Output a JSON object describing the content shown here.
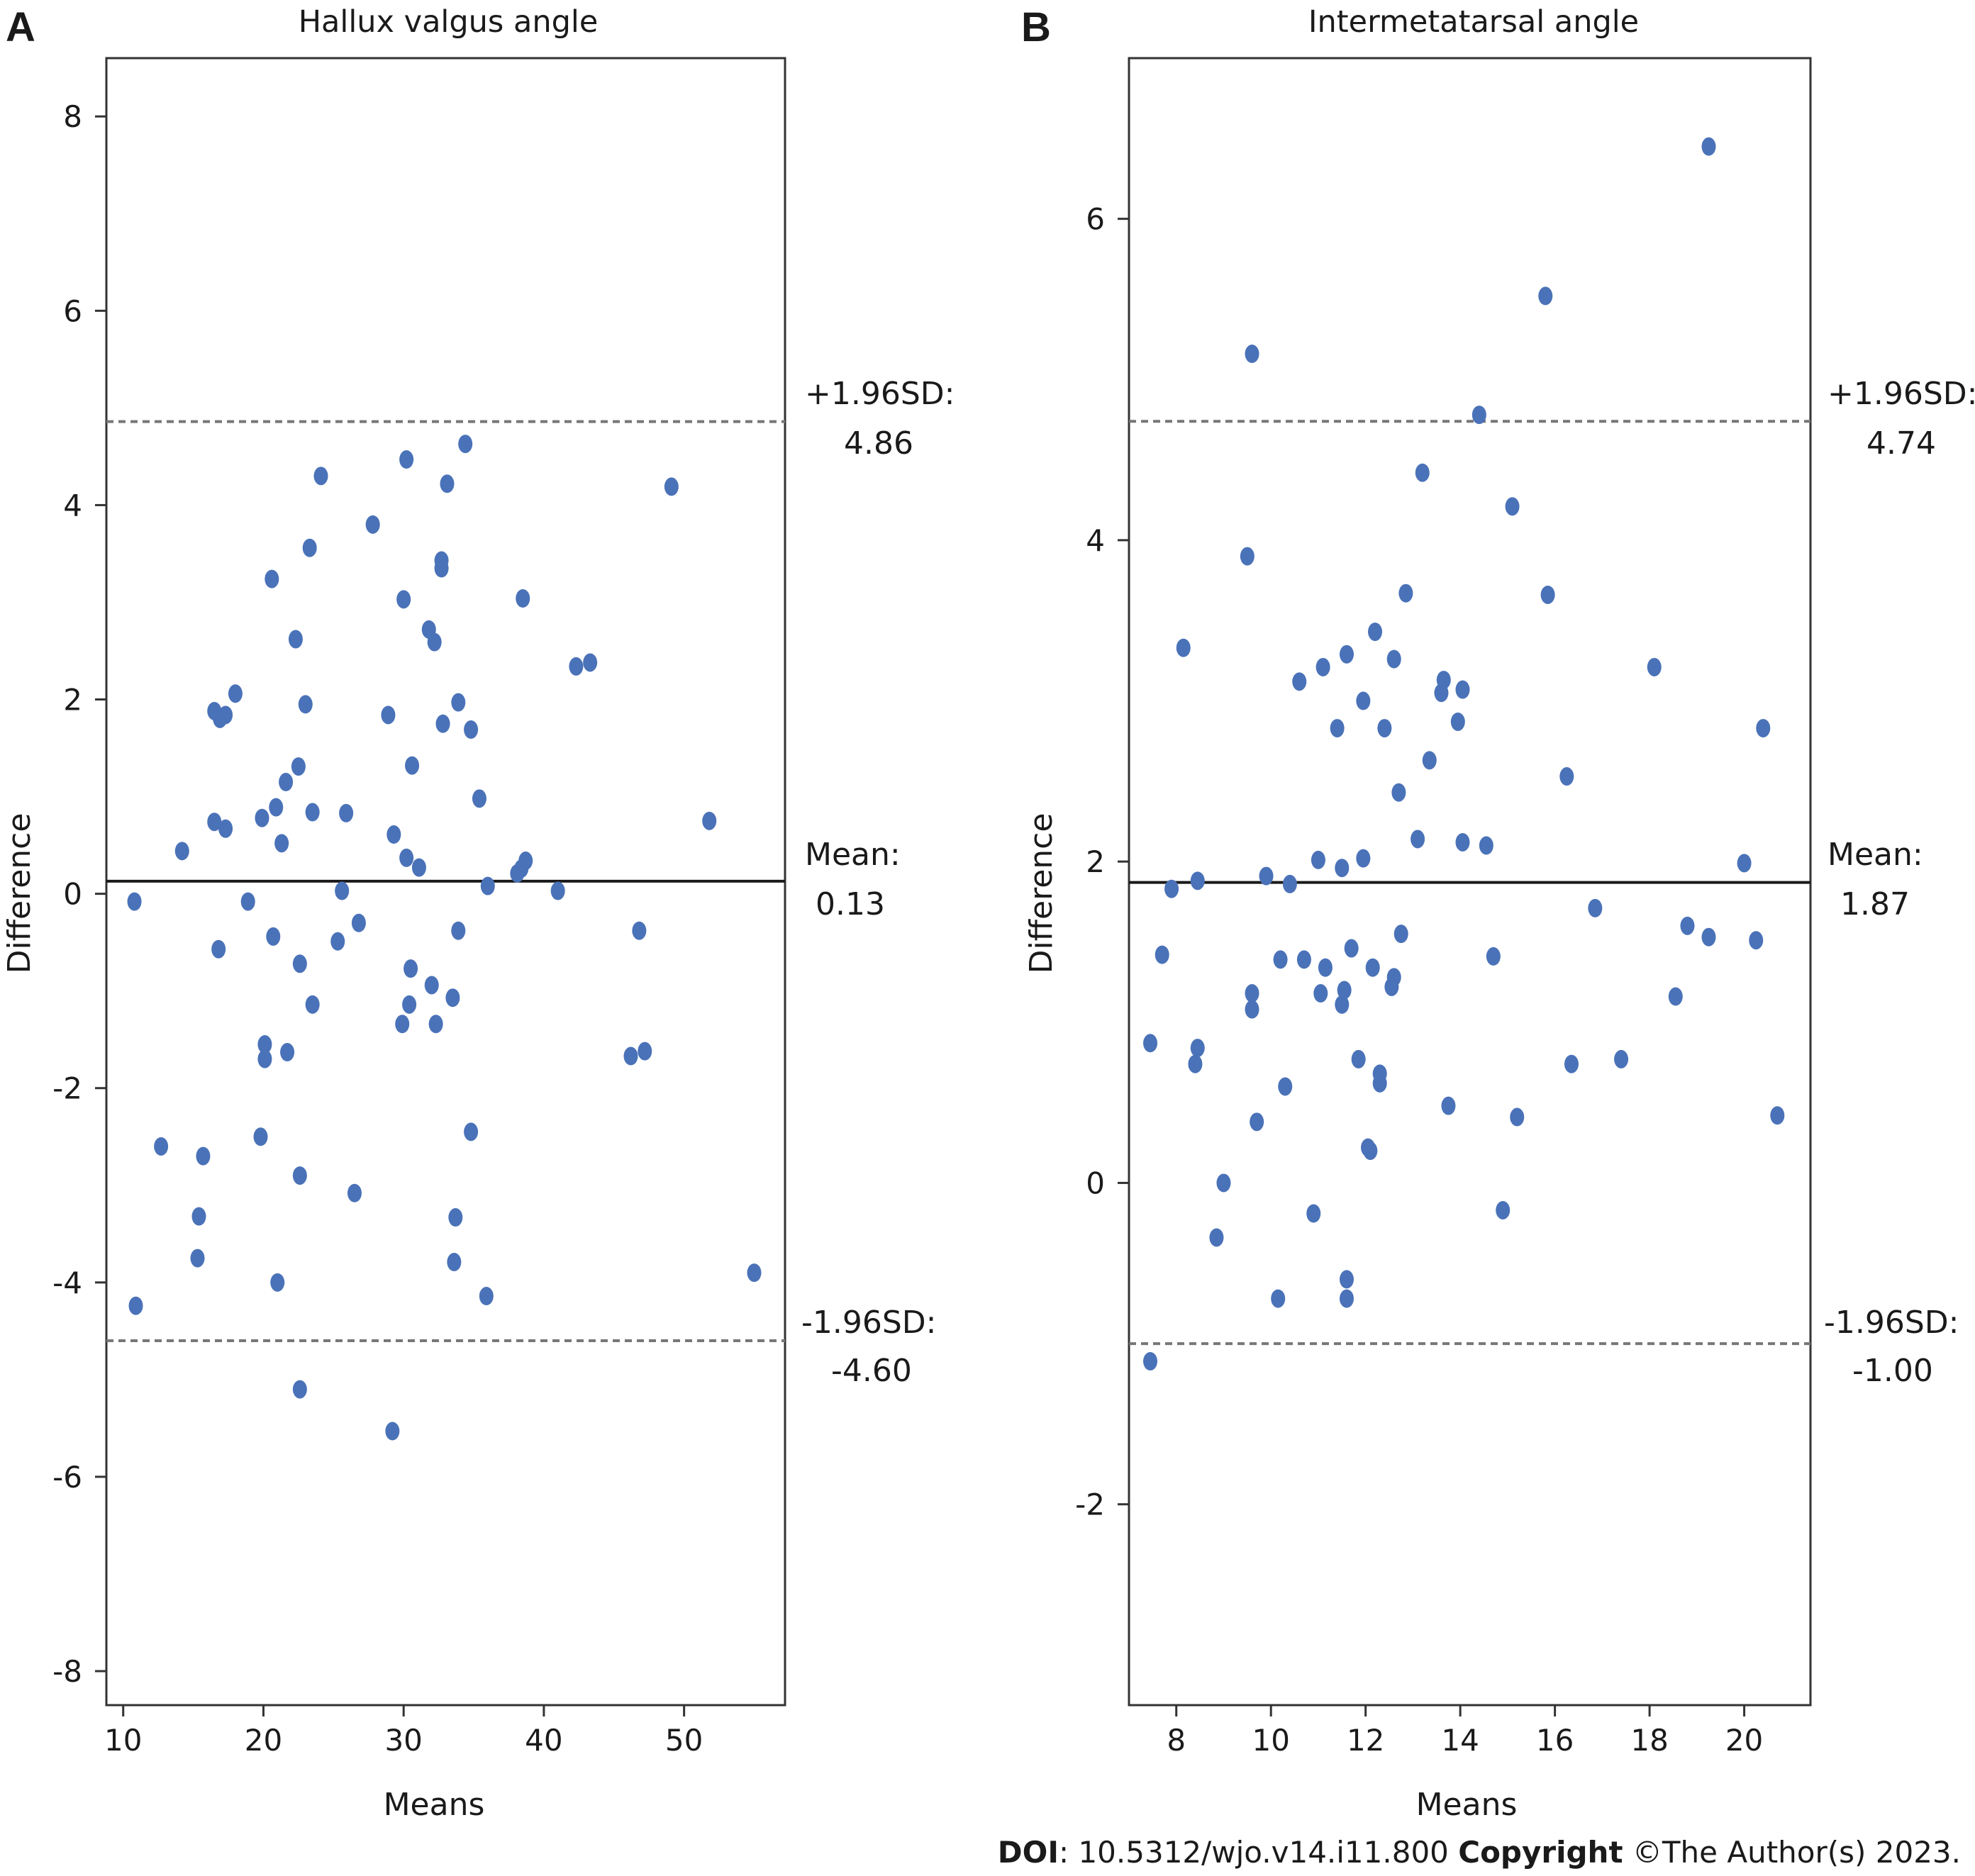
{
  "footer": {
    "doi_label": "DOI",
    "doi_value": ": 10.5312/wjo.v14.i11.800",
    "copyright_label": "Copyright",
    "copyright_value": " ©The Author(s) 2023."
  },
  "colors": {
    "point": "#4a72b8",
    "mean_line": "#1a1a1a",
    "limit_line": "#777777",
    "frame": "#333333"
  },
  "chart_data": [
    {
      "type": "scatter",
      "panel_label": "A",
      "title": "Hallux valgus angle",
      "xlabel": "Means",
      "ylabel": "Difference",
      "xlim": [
        8.8,
        57.2
      ],
      "ylim": [
        -8.35,
        8.6
      ],
      "xticks": [
        10,
        20,
        30,
        40,
        50
      ],
      "yticks": [
        -8,
        -6,
        -4,
        -2,
        0,
        2,
        4,
        6,
        8
      ],
      "grid": false,
      "mean": {
        "label": "Mean:",
        "value": 0.13,
        "value_text": "0.13"
      },
      "upper_loa": {
        "label": "+1.96SD:",
        "value": 4.86,
        "value_text": "4.86"
      },
      "lower_loa": {
        "label": "-1.96SD:",
        "value": -4.6,
        "value_text": "-4.60"
      },
      "points": [
        [
          10.8,
          -0.08
        ],
        [
          10.9,
          -4.24
        ],
        [
          12.7,
          -2.6
        ],
        [
          14.2,
          0.44
        ],
        [
          15.3,
          -3.75
        ],
        [
          15.4,
          -3.32
        ],
        [
          15.7,
          -2.7
        ],
        [
          16.5,
          1.88
        ],
        [
          16.5,
          0.74
        ],
        [
          16.8,
          -0.57
        ],
        [
          16.9,
          1.8
        ],
        [
          17.3,
          1.84
        ],
        [
          17.3,
          0.67
        ],
        [
          18.0,
          2.06
        ],
        [
          18.9,
          -0.08
        ],
        [
          19.8,
          -2.5
        ],
        [
          19.9,
          0.78
        ],
        [
          20.1,
          -1.55
        ],
        [
          20.1,
          -1.7
        ],
        [
          20.6,
          3.24
        ],
        [
          20.7,
          -0.44
        ],
        [
          20.9,
          0.89
        ],
        [
          21.0,
          -4.0
        ],
        [
          21.3,
          0.52
        ],
        [
          21.6,
          1.15
        ],
        [
          21.7,
          -1.63
        ],
        [
          22.3,
          2.62
        ],
        [
          22.5,
          1.31
        ],
        [
          22.6,
          -0.72
        ],
        [
          22.6,
          -2.9
        ],
        [
          22.6,
          -5.1
        ],
        [
          23.0,
          1.95
        ],
        [
          23.3,
          3.56
        ],
        [
          23.5,
          0.84
        ],
        [
          23.5,
          -1.14
        ],
        [
          24.1,
          4.3
        ],
        [
          25.3,
          -0.49
        ],
        [
          25.6,
          0.03
        ],
        [
          25.9,
          0.83
        ],
        [
          26.5,
          -3.08
        ],
        [
          26.8,
          -0.3
        ],
        [
          27.8,
          3.8
        ],
        [
          28.9,
          1.84
        ],
        [
          29.2,
          -5.53
        ],
        [
          29.3,
          0.61
        ],
        [
          29.9,
          -1.34
        ],
        [
          30.0,
          3.03
        ],
        [
          30.2,
          0.37
        ],
        [
          30.2,
          4.47
        ],
        [
          30.4,
          -1.14
        ],
        [
          30.5,
          -0.77
        ],
        [
          30.6,
          1.32
        ],
        [
          31.1,
          0.27
        ],
        [
          31.8,
          2.72
        ],
        [
          32.0,
          -0.94
        ],
        [
          32.2,
          2.59
        ],
        [
          32.3,
          -1.34
        ],
        [
          32.7,
          3.35
        ],
        [
          32.7,
          3.43
        ],
        [
          32.8,
          1.75
        ],
        [
          33.1,
          4.22
        ],
        [
          33.5,
          -1.07
        ],
        [
          33.6,
          -3.79
        ],
        [
          33.7,
          -3.33
        ],
        [
          33.9,
          -0.38
        ],
        [
          33.9,
          1.97
        ],
        [
          34.4,
          4.63
        ],
        [
          34.8,
          -2.45
        ],
        [
          34.8,
          1.69
        ],
        [
          35.4,
          0.98
        ],
        [
          35.9,
          -4.14
        ],
        [
          36.0,
          0.08
        ],
        [
          38.1,
          0.21
        ],
        [
          38.4,
          0.26
        ],
        [
          38.5,
          3.04
        ],
        [
          38.7,
          0.34
        ],
        [
          41.0,
          0.03
        ],
        [
          42.3,
          2.34
        ],
        [
          43.3,
          2.38
        ],
        [
          46.2,
          -1.67
        ],
        [
          46.8,
          -0.38
        ],
        [
          47.2,
          -1.62
        ],
        [
          49.1,
          4.19
        ],
        [
          51.8,
          0.75
        ],
        [
          55.0,
          -3.9
        ]
      ]
    },
    {
      "type": "scatter",
      "panel_label": "B",
      "title": "Intermetatarsal angle",
      "xlabel": "Means",
      "ylabel": "Difference",
      "xlim": [
        7.0,
        21.4
      ],
      "ylim": [
        -3.25,
        7.0
      ],
      "xticks": [
        8,
        10,
        12,
        14,
        16,
        18,
        20
      ],
      "yticks": [
        -2,
        0,
        2,
        4,
        6
      ],
      "grid": false,
      "mean": {
        "label": "Mean:",
        "value": 1.87,
        "value_text": "1.87"
      },
      "upper_loa": {
        "label": "+1.96SD:",
        "value": 4.74,
        "value_text": "4.74"
      },
      "lower_loa": {
        "label": "-1.96SD:",
        "value": -1.0,
        "value_text": "-1.00"
      },
      "points": [
        [
          7.45,
          0.87
        ],
        [
          7.45,
          -1.11
        ],
        [
          7.7,
          1.42
        ],
        [
          7.9,
          1.83
        ],
        [
          8.15,
          3.33
        ],
        [
          8.4,
          0.74
        ],
        [
          8.45,
          0.84
        ],
        [
          8.45,
          1.88
        ],
        [
          8.85,
          -0.34
        ],
        [
          9.0,
          0.0
        ],
        [
          9.5,
          3.9
        ],
        [
          9.6,
          1.08
        ],
        [
          9.6,
          1.18
        ],
        [
          9.6,
          5.16
        ],
        [
          9.7,
          0.38
        ],
        [
          9.9,
          1.91
        ],
        [
          10.15,
          -0.72
        ],
        [
          10.2,
          1.39
        ],
        [
          10.3,
          0.6
        ],
        [
          10.4,
          1.86
        ],
        [
          10.6,
          3.12
        ],
        [
          10.7,
          1.39
        ],
        [
          10.9,
          -0.19
        ],
        [
          11.0,
          2.01
        ],
        [
          11.05,
          1.18
        ],
        [
          11.1,
          3.21
        ],
        [
          11.15,
          1.34
        ],
        [
          11.4,
          2.83
        ],
        [
          11.5,
          1.11
        ],
        [
          11.5,
          1.96
        ],
        [
          11.55,
          1.2
        ],
        [
          11.6,
          3.29
        ],
        [
          11.6,
          -0.72
        ],
        [
          11.6,
          -0.6
        ],
        [
          11.7,
          1.46
        ],
        [
          11.85,
          0.77
        ],
        [
          11.95,
          3.0
        ],
        [
          11.95,
          2.02
        ],
        [
          12.05,
          0.22
        ],
        [
          12.1,
          0.2
        ],
        [
          12.15,
          1.34
        ],
        [
          12.2,
          3.43
        ],
        [
          12.3,
          0.62
        ],
        [
          12.3,
          0.68
        ],
        [
          12.4,
          2.83
        ],
        [
          12.55,
          1.22
        ],
        [
          12.6,
          1.28
        ],
        [
          12.6,
          3.26
        ],
        [
          12.7,
          2.43
        ],
        [
          12.75,
          1.55
        ],
        [
          12.85,
          3.67
        ],
        [
          13.1,
          2.14
        ],
        [
          13.2,
          4.42
        ],
        [
          13.35,
          2.63
        ],
        [
          13.6,
          3.05
        ],
        [
          13.65,
          3.13
        ],
        [
          13.75,
          0.48
        ],
        [
          13.95,
          2.87
        ],
        [
          14.05,
          3.07
        ],
        [
          14.05,
          2.12
        ],
        [
          14.4,
          4.78
        ],
        [
          14.55,
          2.1
        ],
        [
          14.7,
          1.41
        ],
        [
          14.9,
          -0.17
        ],
        [
          15.1,
          4.21
        ],
        [
          15.2,
          0.41
        ],
        [
          15.8,
          5.52
        ],
        [
          15.85,
          3.66
        ],
        [
          16.25,
          2.53
        ],
        [
          16.35,
          0.74
        ],
        [
          16.85,
          1.71
        ],
        [
          17.4,
          0.77
        ],
        [
          18.1,
          3.21
        ],
        [
          18.55,
          1.16
        ],
        [
          18.8,
          1.6
        ],
        [
          19.25,
          1.53
        ],
        [
          19.25,
          6.45
        ],
        [
          20.0,
          1.99
        ],
        [
          20.25,
          1.51
        ],
        [
          20.4,
          2.83
        ],
        [
          20.7,
          0.42
        ]
      ]
    }
  ]
}
